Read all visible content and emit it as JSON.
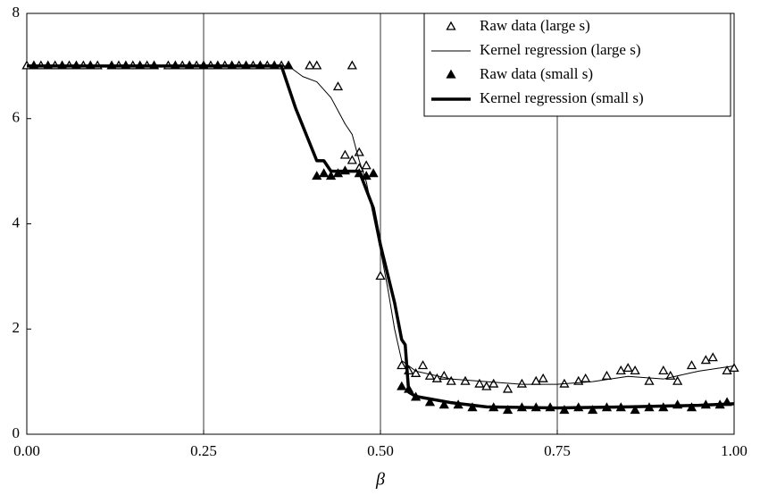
{
  "chart_data": {
    "type": "scatter",
    "x_label": "β",
    "xlim": [
      0,
      1
    ],
    "ylim": [
      0,
      8
    ],
    "xticks": [
      {
        "value": 0,
        "label": "0.00"
      },
      {
        "value": 0.25,
        "label": "0.25"
      },
      {
        "value": 0.5,
        "label": "0.50"
      },
      {
        "value": 0.75,
        "label": "0.75"
      },
      {
        "value": 1,
        "label": "1.00"
      }
    ],
    "yticks": [
      0,
      2,
      4,
      6,
      8
    ],
    "grid": "x",
    "legend": "upper right",
    "series": [
      {
        "name": "Raw data (large s)",
        "color": "#000000",
        "marker": "open-triangle",
        "x": [
          0.0,
          0.02,
          0.04,
          0.06,
          0.08,
          0.1,
          0.13,
          0.15,
          0.17,
          0.2,
          0.22,
          0.24,
          0.26,
          0.28,
          0.3,
          0.32,
          0.34,
          0.36,
          0.4,
          0.41,
          0.44,
          0.45,
          0.46,
          0.46,
          0.47,
          0.48,
          0.47,
          0.5,
          0.53,
          0.54,
          0.55,
          0.56,
          0.57,
          0.58,
          0.59,
          0.6,
          0.62,
          0.64,
          0.65,
          0.66,
          0.68,
          0.7,
          0.72,
          0.73,
          0.76,
          0.78,
          0.79,
          0.82,
          0.84,
          0.85,
          0.86,
          0.88,
          0.9,
          0.91,
          0.92,
          0.94,
          0.96,
          0.97,
          0.99,
          1.0
        ],
        "values": [
          7,
          7,
          7,
          7,
          7,
          7,
          7,
          7,
          7,
          7,
          7,
          7,
          7,
          7,
          7,
          7,
          7,
          7,
          7.0,
          7.0,
          6.6,
          5.3,
          7.0,
          5.2,
          5.05,
          5.1,
          5.35,
          3.0,
          1.3,
          1.2,
          1.15,
          1.3,
          1.1,
          1.05,
          1.1,
          1.0,
          1.0,
          0.95,
          0.9,
          0.95,
          0.85,
          0.95,
          1.0,
          1.05,
          0.95,
          1.0,
          1.05,
          1.1,
          1.2,
          1.25,
          1.2,
          1.0,
          1.2,
          1.1,
          1.0,
          1.3,
          1.4,
          1.45,
          1.2,
          1.25
        ]
      },
      {
        "name": "Kernel regression (large s)",
        "color": "#000000",
        "line_width": 1,
        "x": [
          0,
          0.37,
          0.39,
          0.41,
          0.43,
          0.45,
          0.46,
          0.47,
          0.48,
          0.5,
          0.51,
          0.52,
          0.53,
          0.55,
          0.6,
          0.7,
          0.75,
          0.8,
          0.85,
          0.9,
          0.95,
          1.0
        ],
        "values": [
          7,
          7,
          6.8,
          6.7,
          6.4,
          5.9,
          5.7,
          5.2,
          4.8,
          3.5,
          2.8,
          2.0,
          1.4,
          1.2,
          1.05,
          0.95,
          0.95,
          1.0,
          1.1,
          1.05,
          1.2,
          1.3
        ]
      },
      {
        "name": "Raw data (small s)",
        "color": "#000000",
        "marker": "filled-triangle",
        "x": [
          0.01,
          0.03,
          0.05,
          0.07,
          0.09,
          0.12,
          0.14,
          0.16,
          0.18,
          0.21,
          0.23,
          0.25,
          0.27,
          0.29,
          0.31,
          0.33,
          0.35,
          0.37,
          0.41,
          0.42,
          0.43,
          0.44,
          0.45,
          0.47,
          0.48,
          0.49,
          0.53,
          0.54,
          0.55,
          0.57,
          0.59,
          0.61,
          0.63,
          0.66,
          0.68,
          0.7,
          0.72,
          0.74,
          0.76,
          0.78,
          0.8,
          0.82,
          0.84,
          0.86,
          0.88,
          0.9,
          0.92,
          0.94,
          0.96,
          0.98,
          0.99
        ],
        "values": [
          7,
          7,
          7,
          7,
          7,
          7,
          7,
          7,
          7,
          7,
          7,
          7,
          7,
          7,
          7,
          7,
          7,
          7,
          4.9,
          4.95,
          4.9,
          4.95,
          5.0,
          4.95,
          4.9,
          4.95,
          0.9,
          0.85,
          0.7,
          0.6,
          0.55,
          0.55,
          0.5,
          0.5,
          0.45,
          0.5,
          0.5,
          0.5,
          0.45,
          0.5,
          0.45,
          0.5,
          0.5,
          0.45,
          0.5,
          0.5,
          0.55,
          0.5,
          0.55,
          0.55,
          0.6
        ]
      },
      {
        "name": "Kernel regression (small s)",
        "color": "#000000",
        "line_width": 3.5,
        "x": [
          0,
          0.36,
          0.38,
          0.41,
          0.42,
          0.43,
          0.47,
          0.49,
          0.5,
          0.52,
          0.53,
          0.535,
          0.54,
          0.55,
          0.6,
          0.65,
          0.75,
          0.85,
          0.95,
          1.0
        ],
        "values": [
          7,
          7,
          6.2,
          5.2,
          5.2,
          5.0,
          5.0,
          4.3,
          3.6,
          2.5,
          1.8,
          1.7,
          0.8,
          0.72,
          0.6,
          0.52,
          0.5,
          0.52,
          0.55,
          0.58
        ]
      }
    ]
  }
}
